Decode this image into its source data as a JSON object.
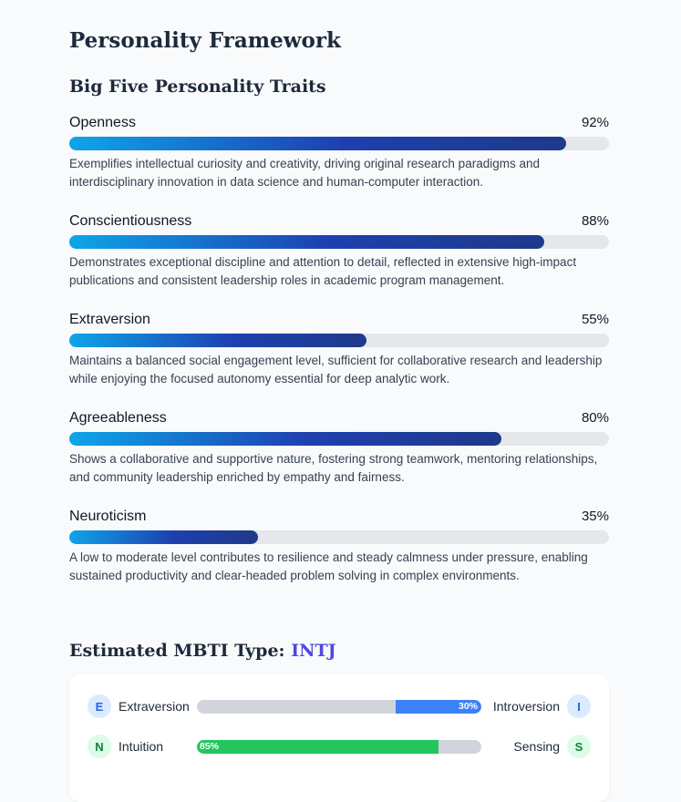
{
  "page": {
    "title": "Personality Framework"
  },
  "big_five": {
    "title": "Big Five Personality Traits",
    "traits": [
      {
        "name": "Openness",
        "percent_label": "92%",
        "value": 92,
        "description": "Exemplifies intellectual curiosity and creativity, driving original research paradigms and interdisciplinary innovation in data science and human-computer interaction."
      },
      {
        "name": "Conscientiousness",
        "percent_label": "88%",
        "value": 88,
        "description": "Demonstrates exceptional discipline and attention to detail, reflected in extensive high-impact publications and consistent leadership roles in academic program management."
      },
      {
        "name": "Extraversion",
        "percent_label": "55%",
        "value": 55,
        "description": "Maintains a balanced social engagement level, sufficient for collaborative research and leadership while enjoying the focused autonomy essential for deep analytic work."
      },
      {
        "name": "Agreeableness",
        "percent_label": "80%",
        "value": 80,
        "description": "Shows a collaborative and supportive nature, fostering strong teamwork, mentoring relationships, and community leadership enriched by empathy and fairness."
      },
      {
        "name": "Neuroticism",
        "percent_label": "35%",
        "value": 35,
        "description": "A low to moderate level contributes to resilience and steady calmness under pressure, enabling sustained productivity and clear-headed problem solving in complex environments."
      }
    ]
  },
  "mbti": {
    "title_prefix": "Estimated MBTI Type: ",
    "type": "INTJ",
    "axes": [
      {
        "left_letter": "E",
        "left_label": "Extraversion",
        "right_label": "Introversion",
        "right_letter": "I",
        "fill_side": "right",
        "value": 30,
        "value_label": "30%",
        "color": "#3b82f6"
      },
      {
        "left_letter": "N",
        "left_label": "Intuition",
        "right_label": "Sensing",
        "right_letter": "S",
        "fill_side": "left",
        "value": 85,
        "value_label": "85%",
        "color": "#22c55e"
      }
    ]
  }
}
